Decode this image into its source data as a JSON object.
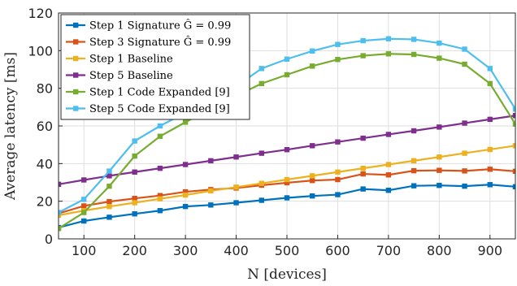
{
  "chart_data": {
    "type": "line",
    "xlabel": "N [devices]",
    "ylabel": "Average latency [ms]",
    "xlim": [
      50,
      950
    ],
    "ylim": [
      0,
      120
    ],
    "xticks": [
      100,
      200,
      300,
      400,
      500,
      600,
      700,
      800,
      900
    ],
    "yticks": [
      0,
      20,
      40,
      60,
      80,
      100,
      120
    ],
    "grid": true,
    "legend_position": "top-left",
    "x": [
      50,
      100,
      150,
      200,
      250,
      300,
      350,
      400,
      450,
      500,
      550,
      600,
      650,
      700,
      750,
      800,
      850,
      900,
      950
    ],
    "series": [
      {
        "name": "Step 1 Signature Ĝ = 0.99",
        "color": "#0072BD",
        "values": [
          6,
          9.5,
          11.5,
          13.3,
          15,
          17.2,
          18,
          19.2,
          20.5,
          21.8,
          22.8,
          23.5,
          26.5,
          25.8,
          28.2,
          28.4,
          28,
          28.8,
          27.7
        ]
      },
      {
        "name": "Step 3 Signature Ĝ = 0.99",
        "color": "#D95319",
        "values": [
          13.5,
          17.5,
          19.8,
          21.5,
          23,
          25,
          26.2,
          27,
          28.5,
          29.8,
          31,
          31.5,
          34.5,
          34,
          36.2,
          36.4,
          36.1,
          37,
          35.9
        ]
      },
      {
        "name": "Step 1 Baseline",
        "color": "#EDB120",
        "values": [
          12.5,
          15,
          17.2,
          19.2,
          21.3,
          23.3,
          25.5,
          27.5,
          29.5,
          31.5,
          33.5,
          35.5,
          37.5,
          39.5,
          41.5,
          43.5,
          45.5,
          47.5,
          49.5
        ]
      },
      {
        "name": "Step 5 Baseline",
        "color": "#7E2F8E",
        "values": [
          29,
          31.3,
          33.5,
          35.5,
          37.5,
          39.5,
          41.5,
          43.5,
          45.5,
          47.4,
          49.5,
          51.5,
          53.5,
          55.5,
          57.4,
          59.4,
          61.5,
          63.5,
          65.5
        ]
      },
      {
        "name": "Step 1 Code Expanded [9]",
        "color": "#77AC30",
        "values": [
          5.5,
          14,
          28,
          44,
          54.5,
          62,
          69,
          76,
          82.5,
          87.2,
          91.8,
          95.3,
          97.3,
          98.3,
          98,
          96,
          92.8,
          82.5,
          61
        ]
      },
      {
        "name": "Step 5 Code Expanded [9]",
        "color": "#4DBEEE",
        "values": [
          14,
          21,
          36,
          52,
          60,
          67,
          74,
          81,
          90.5,
          95.5,
          99.8,
          103.3,
          105.3,
          106.3,
          106,
          104,
          100.8,
          90.5,
          69
        ]
      }
    ]
  }
}
